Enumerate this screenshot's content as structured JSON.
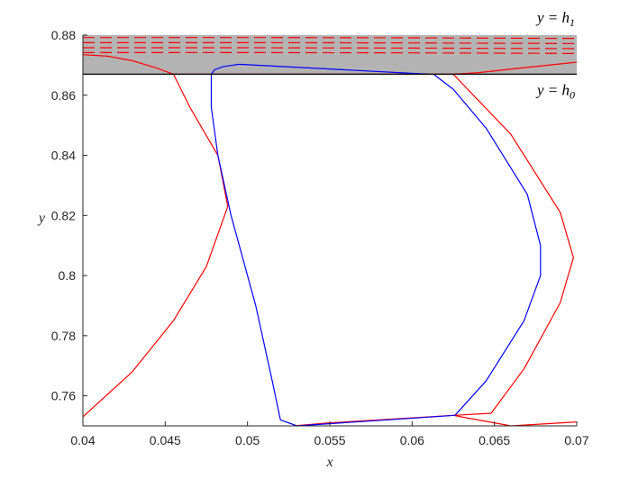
{
  "chart_data": {
    "type": "line",
    "title": "",
    "xlabel": "x",
    "ylabel": "y",
    "xlim": [
      0.04,
      0.07
    ],
    "ylim": [
      0.75,
      0.88
    ],
    "x_ticks": [
      0.04,
      0.045,
      0.05,
      0.055,
      0.06,
      0.065,
      0.07
    ],
    "x_tick_labels": [
      "0.04",
      "0.045",
      "0.05",
      "0.055",
      "0.06",
      "0.065",
      "0.07"
    ],
    "y_ticks": [
      0.76,
      0.78,
      0.8,
      0.82,
      0.84,
      0.86,
      0.88
    ],
    "y_tick_labels": [
      "0.76",
      "0.78",
      "0.8",
      "0.82",
      "0.84",
      "0.86",
      "0.88"
    ],
    "grid": false,
    "legend": "none",
    "shaded_band": {
      "y0": 0.867,
      "y1": 0.88,
      "color": "#b3b3b3"
    },
    "boundary_lines": [
      {
        "y": 0.867,
        "label": "y = h",
        "subscript": "0"
      },
      {
        "y": 0.88,
        "label": "y = h",
        "subscript": "1"
      }
    ],
    "colors": {
      "red": "#ff0000",
      "blue": "#0000ff",
      "axis": "#262626"
    },
    "series": [
      {
        "color": "#ff0000",
        "style": "solid",
        "points": [
          [
            0.04,
            0.753
          ],
          [
            0.043,
            0.768
          ],
          [
            0.0455,
            0.785
          ],
          [
            0.0475,
            0.803
          ],
          [
            0.0488,
            0.823
          ],
          [
            0.0482,
            0.84
          ],
          [
            0.0465,
            0.856
          ],
          [
            0.0455,
            0.867
          ]
        ]
      },
      {
        "color": "#ff0000",
        "style": "solid",
        "points": [
          [
            0.04,
            0.8735
          ],
          [
            0.0415,
            0.873
          ],
          [
            0.043,
            0.8715
          ],
          [
            0.0445,
            0.869
          ],
          [
            0.0455,
            0.867
          ],
          [
            0.0625,
            0.867
          ],
          [
            0.064,
            0.8675
          ],
          [
            0.0665,
            0.869
          ],
          [
            0.07,
            0.871
          ]
        ]
      },
      {
        "color": "#ff0000",
        "style": "solid",
        "points": [
          [
            0.0625,
            0.867
          ],
          [
            0.066,
            0.847
          ],
          [
            0.069,
            0.821
          ],
          [
            0.0698,
            0.806
          ],
          [
            0.069,
            0.791
          ],
          [
            0.0668,
            0.769
          ],
          [
            0.0648,
            0.7542
          ],
          [
            0.0625,
            0.7535
          ],
          [
            0.055,
            0.751
          ],
          [
            0.0528,
            0.75
          ]
        ]
      },
      {
        "color": "#ff0000",
        "style": "solid",
        "points": [
          [
            0.0625,
            0.7535
          ],
          [
            0.066,
            0.75
          ],
          [
            0.07,
            0.7513
          ]
        ]
      },
      {
        "color": "#0000ff",
        "style": "solid",
        "points": [
          [
            0.061,
            0.867
          ],
          [
            0.0495,
            0.8703
          ],
          [
            0.0485,
            0.8695
          ],
          [
            0.048,
            0.8685
          ],
          [
            0.0478,
            0.867
          ],
          [
            0.0478,
            0.856
          ],
          [
            0.0482,
            0.84
          ],
          [
            0.049,
            0.82
          ],
          [
            0.0505,
            0.79
          ],
          [
            0.0515,
            0.765
          ],
          [
            0.052,
            0.752
          ],
          [
            0.053,
            0.75
          ],
          [
            0.0626,
            0.7535
          ],
          [
            0.0645,
            0.765
          ],
          [
            0.0668,
            0.785
          ],
          [
            0.0678,
            0.8
          ],
          [
            0.0678,
            0.81
          ],
          [
            0.067,
            0.827
          ],
          [
            0.0645,
            0.849
          ],
          [
            0.0625,
            0.862
          ],
          [
            0.0613,
            0.867
          ]
        ]
      },
      {
        "color": "#ff0000",
        "style": "dashed",
        "points": [
          [
            0.04,
            0.8792
          ],
          [
            0.05,
            0.8792
          ],
          [
            0.06,
            0.8791
          ],
          [
            0.07,
            0.8789
          ]
        ]
      },
      {
        "color": "#ff0000",
        "style": "dashed",
        "points": [
          [
            0.04,
            0.8775
          ],
          [
            0.05,
            0.8775
          ],
          [
            0.06,
            0.8774
          ],
          [
            0.07,
            0.8772
          ]
        ]
      },
      {
        "color": "#ff0000",
        "style": "dashed",
        "points": [
          [
            0.04,
            0.8758
          ],
          [
            0.05,
            0.8758
          ],
          [
            0.06,
            0.8757
          ],
          [
            0.07,
            0.8755
          ]
        ]
      },
      {
        "color": "#ff0000",
        "style": "dashed",
        "points": [
          [
            0.04,
            0.8742
          ],
          [
            0.05,
            0.8742
          ],
          [
            0.06,
            0.8741
          ],
          [
            0.07,
            0.8739
          ]
        ]
      }
    ]
  }
}
